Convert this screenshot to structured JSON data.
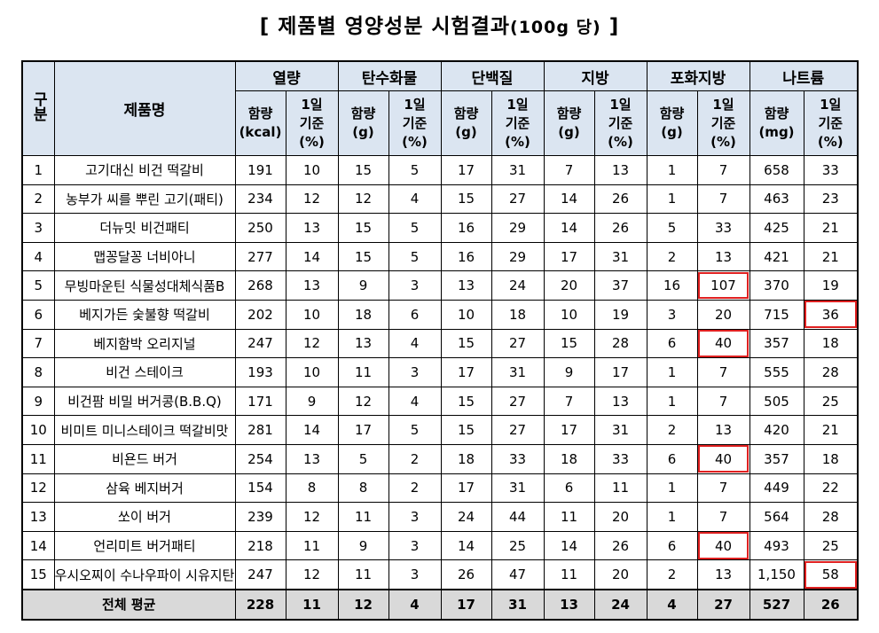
{
  "title": "[ 제품별 영양성분 시험결과",
  "title_paren": "(100g 당)",
  "title_close": "]",
  "headers": {
    "no": "구분",
    "name": "제품명",
    "groups": [
      "열량",
      "탄수화물",
      "단백질",
      "지방",
      "포화지방",
      "나트륨"
    ],
    "sub": [
      [
        "함량",
        "(kcal)"
      ],
      [
        "1일",
        "기준",
        "(%)"
      ],
      [
        "함량",
        "(g)"
      ],
      [
        "1일",
        "기준",
        "(%)"
      ],
      [
        "함량",
        "(g)"
      ],
      [
        "1일",
        "기준",
        "(%)"
      ],
      [
        "함량",
        "(g)"
      ],
      [
        "1일",
        "기준",
        "(%)"
      ],
      [
        "함량",
        "(g)"
      ],
      [
        "1일",
        "기준",
        "(%)"
      ],
      [
        "함량",
        "(mg)"
      ],
      [
        "1일",
        "기준",
        "(%)"
      ]
    ]
  },
  "rows": [
    {
      "no": "1",
      "name": "고기대신 비건 떡갈비",
      "v": [
        "191",
        "10",
        "15",
        "5",
        "17",
        "31",
        "7",
        "13",
        "1",
        "7",
        "658",
        "33"
      ]
    },
    {
      "no": "2",
      "name": "농부가 씨를 뿌린 고기(패티)",
      "v": [
        "234",
        "12",
        "12",
        "4",
        "15",
        "27",
        "14",
        "26",
        "1",
        "7",
        "463",
        "23"
      ]
    },
    {
      "no": "3",
      "name": "더뉴밋 비건패티",
      "v": [
        "250",
        "13",
        "15",
        "5",
        "16",
        "29",
        "14",
        "26",
        "5",
        "33",
        "425",
        "21"
      ]
    },
    {
      "no": "4",
      "name": "맵꽁달꽁 너비아니",
      "v": [
        "277",
        "14",
        "15",
        "5",
        "16",
        "29",
        "17",
        "31",
        "2",
        "13",
        "421",
        "21"
      ]
    },
    {
      "no": "5",
      "name": "무빙마운틴 식물성대체식품B",
      "v": [
        "268",
        "13",
        "9",
        "3",
        "13",
        "24",
        "20",
        "37",
        "16",
        "107",
        "370",
        "19"
      ]
    },
    {
      "no": "6",
      "name": "베지가든 숯불향 떡갈비",
      "v": [
        "202",
        "10",
        "18",
        "6",
        "10",
        "18",
        "10",
        "19",
        "3",
        "20",
        "715",
        "36"
      ]
    },
    {
      "no": "7",
      "name": "베지함박 오리지널",
      "v": [
        "247",
        "12",
        "13",
        "4",
        "15",
        "27",
        "15",
        "28",
        "6",
        "40",
        "357",
        "18"
      ]
    },
    {
      "no": "8",
      "name": "비건 스테이크",
      "v": [
        "193",
        "10",
        "11",
        "3",
        "17",
        "31",
        "9",
        "17",
        "1",
        "7",
        "555",
        "28"
      ]
    },
    {
      "no": "9",
      "name": "비건팜 비밀 버거콩(B.B.Q)",
      "v": [
        "171",
        "9",
        "12",
        "4",
        "15",
        "27",
        "7",
        "13",
        "1",
        "7",
        "505",
        "25"
      ]
    },
    {
      "no": "10",
      "name": "비미트 미니스테이크 떡갈비맛",
      "v": [
        "281",
        "14",
        "17",
        "5",
        "15",
        "27",
        "17",
        "31",
        "2",
        "13",
        "420",
        "21"
      ]
    },
    {
      "no": "11",
      "name": "비욘드 버거",
      "v": [
        "254",
        "13",
        "5",
        "2",
        "18",
        "33",
        "18",
        "33",
        "6",
        "40",
        "357",
        "18"
      ]
    },
    {
      "no": "12",
      "name": "삼육 베지버거",
      "v": [
        "154",
        "8",
        "8",
        "2",
        "17",
        "31",
        "6",
        "11",
        "1",
        "7",
        "449",
        "22"
      ]
    },
    {
      "no": "13",
      "name": "쏘이 버거",
      "v": [
        "239",
        "12",
        "11",
        "3",
        "24",
        "44",
        "11",
        "20",
        "1",
        "7",
        "564",
        "28"
      ]
    },
    {
      "no": "14",
      "name": "언리미트 버거패티",
      "v": [
        "218",
        "11",
        "9",
        "3",
        "14",
        "25",
        "14",
        "26",
        "6",
        "40",
        "493",
        "25"
      ]
    },
    {
      "no": "15",
      "name": "우시오찌이 수나우파이 시유지탄",
      "v": [
        "247",
        "12",
        "11",
        "3",
        "26",
        "47",
        "11",
        "20",
        "2",
        "13",
        "1,150",
        "58"
      ]
    }
  ],
  "highlights": [
    [
      4,
      9
    ],
    [
      5,
      11
    ],
    [
      6,
      9
    ],
    [
      10,
      9
    ],
    [
      13,
      9
    ],
    [
      14,
      11
    ]
  ],
  "highlight_color": "#e02020",
  "header_bg": "#dbe5f1",
  "average": {
    "label": "전체 평균",
    "v": [
      "228",
      "11",
      "12",
      "4",
      "17",
      "31",
      "13",
      "24",
      "4",
      "27",
      "527",
      "26"
    ]
  }
}
